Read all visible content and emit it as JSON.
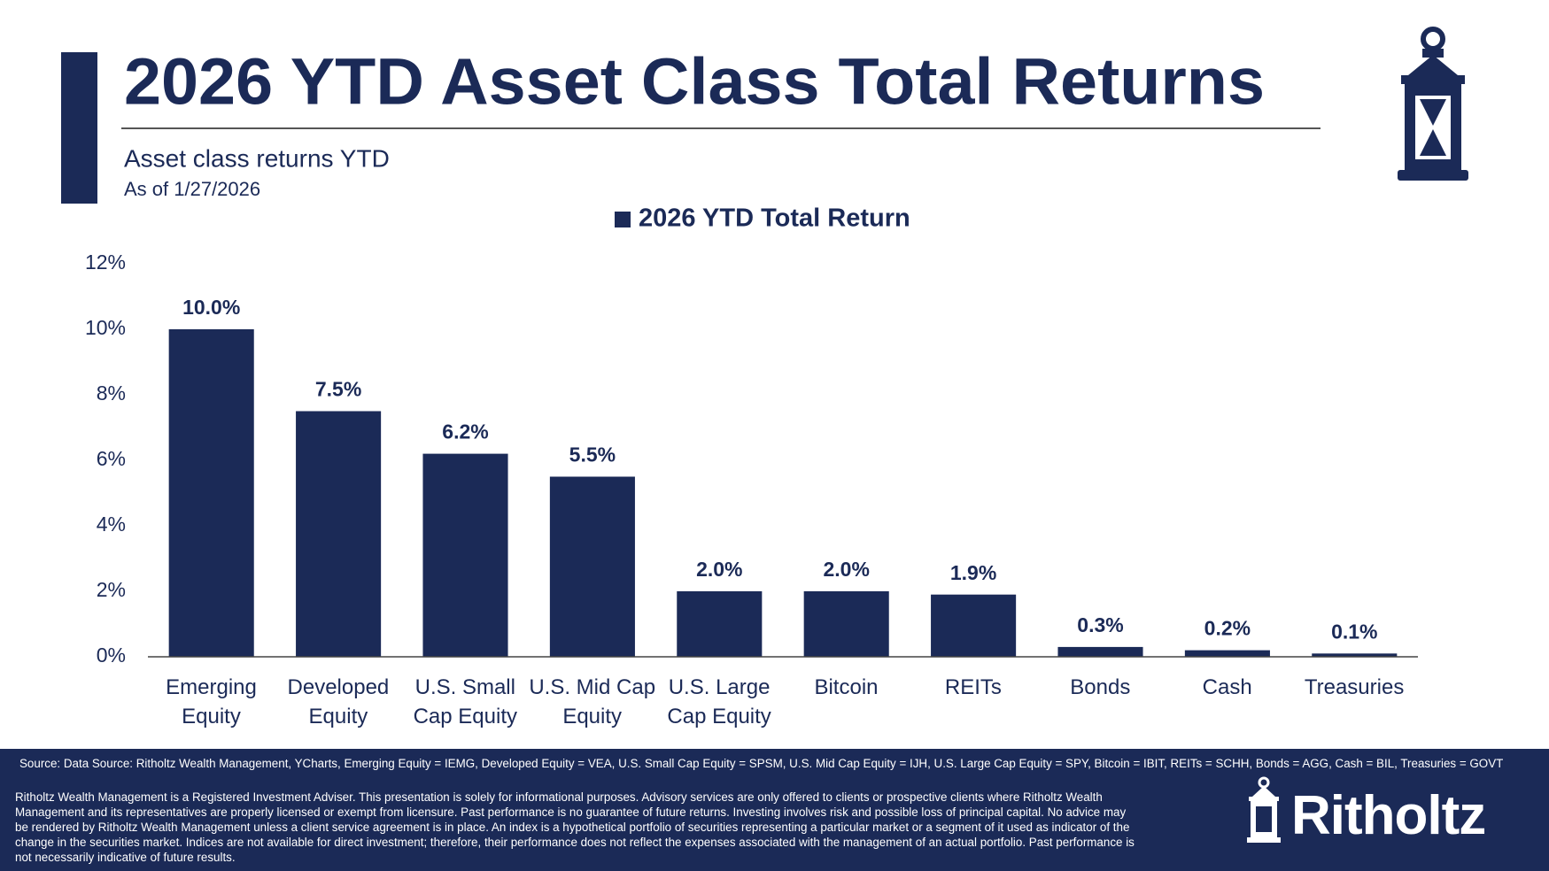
{
  "chart_data": {
    "type": "bar",
    "title": "2026 YTD Asset Class Total Returns",
    "subtitle": "Asset class returns YTD",
    "date_note": "As of 1/27/2026",
    "categories": [
      "Emerging Equity",
      "Developed Equity",
      "U.S. Small Cap Equity",
      "U.S. Mid Cap Equity",
      "U.S. Large Cap Equity",
      "Bitcoin",
      "REITs",
      "Bonds",
      "Cash",
      "Treasuries"
    ],
    "series": [
      {
        "name": "2026 YTD Total Return",
        "color": "#1b2a57",
        "values": [
          10.0,
          7.5,
          6.2,
          5.5,
          2.0,
          2.0,
          1.9,
          0.3,
          0.2,
          0.1
        ],
        "value_labels": [
          "10.0%",
          "7.5%",
          "6.2%",
          "5.5%",
          "2.0%",
          "2.0%",
          "1.9%",
          "0.3%",
          "0.2%",
          "0.1%"
        ]
      }
    ],
    "ylim": [
      0,
      12
    ],
    "yticks": [
      {
        "value": 0,
        "label": "0%"
      },
      {
        "value": 2,
        "label": "2%"
      },
      {
        "value": 4,
        "label": "4%"
      },
      {
        "value": 6,
        "label": "6%"
      },
      {
        "value": 8,
        "label": "8%"
      },
      {
        "value": 10,
        "label": "10%"
      },
      {
        "value": 12,
        "label": "12%"
      }
    ],
    "grid": false,
    "legend": "top",
    "source": "Source: Data Source: Ritholtz Wealth Management, YCharts, Emerging Equity = IEMG, Developed Equity = VEA, U.S. Small Cap Equity = SPSM, U.S. Mid Cap Equity = IJH, U.S. Large Cap Equity = SPY, Bitcoin = IBIT, REITs = SCHH, Bonds = AGG, Cash = BIL, Treasuries = GOVT",
    "disclaimer": "Ritholtz Wealth Management is a Registered Investment Adviser. This presentation is solely for informational purposes. Advisory services are only offered to clients or prospective clients where Ritholtz Wealth Management and its representatives are properly licensed or exempt from licensure. Past performance is no guarantee of future returns. Investing involves risk and possible loss of principal capital. No advice may be rendered by Ritholtz Wealth Management unless a client service agreement is in place. An index is a hypothetical portfolio of securities representing a particular market or a segment of it used as indicator of the change in the securities market. Indices are not available for direct investment; therefore, their performance does not reflect the expenses associated with the management of an actual portfolio. Past performance is not necessarily indicative of future results.",
    "brand": "Ritholtz"
  }
}
